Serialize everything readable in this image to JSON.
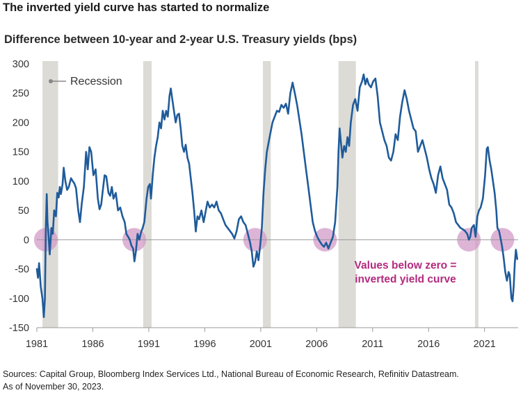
{
  "title": "The inverted yield curve has started to normalize",
  "subtitle": "Difference between 10-year and 2-year U.S. Treasury yields (bps)",
  "source_line1": "Sources: Capital Group, Bloomberg Index Services Ltd., National Bureau of Economic Research, Refinitiv Datastream.",
  "source_line2": "As of November 30, 2023.",
  "colors": {
    "line": "#1f5b9a",
    "recession": "#dcdbd6",
    "highlight": "#d39bc8",
    "annotation": "#b32a7e",
    "axis": "#999999"
  },
  "chart_data": {
    "type": "line",
    "xlim": [
      1981.0,
      2024.0
    ],
    "ylim": [
      -150,
      300
    ],
    "yticks": [
      -150,
      -100,
      -50,
      0,
      50,
      100,
      150,
      200,
      250,
      300
    ],
    "xticks": [
      1981,
      1986,
      1991,
      1996,
      2001,
      2006,
      2011,
      2016,
      2021
    ],
    "legend": {
      "label": "Recession",
      "position": "top-left"
    },
    "annotation": {
      "line1": "Values below zero =",
      "line2": "inverted yield curve"
    },
    "recessions": [
      [
        1981.5,
        1982.9
      ],
      [
        1990.5,
        1991.25
      ],
      [
        2001.2,
        2001.9
      ],
      [
        2007.95,
        2009.5
      ],
      [
        2020.15,
        2020.45
      ]
    ],
    "inversion_markers": [
      1981.8,
      1989.7,
      2000.5,
      2006.75,
      2019.6,
      2022.6
    ],
    "series": [
      {
        "points": [
          [
            1981.0,
            -50
          ],
          [
            1981.1,
            -65
          ],
          [
            1981.2,
            -40
          ],
          [
            1981.35,
            -80
          ],
          [
            1981.5,
            -100
          ],
          [
            1981.62,
            -132
          ],
          [
            1981.72,
            -100
          ],
          [
            1981.8,
            20
          ],
          [
            1981.88,
            78
          ],
          [
            1981.95,
            30
          ],
          [
            1982.05,
            5
          ],
          [
            1982.15,
            -25
          ],
          [
            1982.3,
            20
          ],
          [
            1982.42,
            10
          ],
          [
            1982.55,
            50
          ],
          [
            1982.7,
            40
          ],
          [
            1982.82,
            80
          ],
          [
            1982.95,
            72
          ],
          [
            1983.05,
            90
          ],
          [
            1983.15,
            78
          ],
          [
            1983.3,
            95
          ],
          [
            1983.4,
            123
          ],
          [
            1983.55,
            100
          ],
          [
            1983.7,
            85
          ],
          [
            1983.85,
            90
          ],
          [
            1984.05,
            105
          ],
          [
            1984.2,
            100
          ],
          [
            1984.35,
            96
          ],
          [
            1984.5,
            88
          ],
          [
            1984.7,
            50
          ],
          [
            1984.85,
            30
          ],
          [
            1985.0,
            60
          ],
          [
            1985.2,
            90
          ],
          [
            1985.4,
            150
          ],
          [
            1985.55,
            120
          ],
          [
            1985.7,
            158
          ],
          [
            1985.85,
            150
          ],
          [
            1986.05,
            110
          ],
          [
            1986.25,
            120
          ],
          [
            1986.45,
            70
          ],
          [
            1986.6,
            52
          ],
          [
            1986.75,
            60
          ],
          [
            1986.9,
            85
          ],
          [
            1987.05,
            110
          ],
          [
            1987.2,
            108
          ],
          [
            1987.4,
            80
          ],
          [
            1987.55,
            75
          ],
          [
            1987.7,
            90
          ],
          [
            1987.85,
            70
          ],
          [
            1988.05,
            80
          ],
          [
            1988.25,
            50
          ],
          [
            1988.45,
            55
          ],
          [
            1988.65,
            40
          ],
          [
            1988.85,
            30
          ],
          [
            1989.0,
            10
          ],
          [
            1989.15,
            5
          ],
          [
            1989.3,
            0
          ],
          [
            1989.45,
            -10
          ],
          [
            1989.6,
            -15
          ],
          [
            1989.72,
            -37
          ],
          [
            1989.85,
            -20
          ],
          [
            1990.0,
            10
          ],
          [
            1990.15,
            0
          ],
          [
            1990.3,
            12
          ],
          [
            1990.45,
            20
          ],
          [
            1990.6,
            30
          ],
          [
            1990.8,
            70
          ],
          [
            1990.95,
            90
          ],
          [
            1991.1,
            95
          ],
          [
            1991.2,
            70
          ],
          [
            1991.35,
            110
          ],
          [
            1991.5,
            140
          ],
          [
            1991.65,
            160
          ],
          [
            1991.8,
            175
          ],
          [
            1991.95,
            200
          ],
          [
            1992.1,
            190
          ],
          [
            1992.25,
            220
          ],
          [
            1992.4,
            205
          ],
          [
            1992.55,
            220
          ],
          [
            1992.7,
            210
          ],
          [
            1992.85,
            245
          ],
          [
            1992.97,
            258
          ],
          [
            1993.1,
            240
          ],
          [
            1993.25,
            220
          ],
          [
            1993.4,
            200
          ],
          [
            1993.55,
            213
          ],
          [
            1993.7,
            215
          ],
          [
            1993.85,
            190
          ],
          [
            1994.0,
            160
          ],
          [
            1994.15,
            150
          ],
          [
            1994.3,
            162
          ],
          [
            1994.45,
            140
          ],
          [
            1994.6,
            130
          ],
          [
            1994.75,
            105
          ],
          [
            1994.9,
            80
          ],
          [
            1995.05,
            50
          ],
          [
            1995.2,
            14
          ],
          [
            1995.35,
            40
          ],
          [
            1995.5,
            35
          ],
          [
            1995.7,
            50
          ],
          [
            1995.9,
            30
          ],
          [
            1996.05,
            45
          ],
          [
            1996.25,
            65
          ],
          [
            1996.45,
            55
          ],
          [
            1996.65,
            60
          ],
          [
            1996.85,
            55
          ],
          [
            1997.05,
            65
          ],
          [
            1997.25,
            50
          ],
          [
            1997.45,
            45
          ],
          [
            1997.65,
            35
          ],
          [
            1997.85,
            25
          ],
          [
            1998.05,
            20
          ],
          [
            1998.25,
            15
          ],
          [
            1998.45,
            10
          ],
          [
            1998.65,
            2
          ],
          [
            1998.85,
            15
          ],
          [
            1999.05,
            35
          ],
          [
            1999.25,
            40
          ],
          [
            1999.45,
            30
          ],
          [
            1999.65,
            25
          ],
          [
            1999.85,
            10
          ],
          [
            2000.05,
            -5
          ],
          [
            2000.2,
            -20
          ],
          [
            2000.35,
            -46
          ],
          [
            2000.5,
            -38
          ],
          [
            2000.65,
            -20
          ],
          [
            2000.8,
            -35
          ],
          [
            2000.95,
            -10
          ],
          [
            2001.1,
            20
          ],
          [
            2001.25,
            80
          ],
          [
            2001.4,
            120
          ],
          [
            2001.55,
            150
          ],
          [
            2001.7,
            165
          ],
          [
            2001.85,
            180
          ],
          [
            2002.05,
            200
          ],
          [
            2002.25,
            210
          ],
          [
            2002.45,
            220
          ],
          [
            2002.65,
            218
          ],
          [
            2002.85,
            230
          ],
          [
            2003.05,
            225
          ],
          [
            2003.25,
            232
          ],
          [
            2003.45,
            215
          ],
          [
            2003.65,
            250
          ],
          [
            2003.85,
            268
          ],
          [
            2004.05,
            250
          ],
          [
            2004.25,
            230
          ],
          [
            2004.45,
            205
          ],
          [
            2004.65,
            180
          ],
          [
            2004.85,
            150
          ],
          [
            2005.05,
            120
          ],
          [
            2005.25,
            90
          ],
          [
            2005.45,
            60
          ],
          [
            2005.65,
            30
          ],
          [
            2005.85,
            15
          ],
          [
            2006.05,
            5
          ],
          [
            2006.25,
            -2
          ],
          [
            2006.45,
            -8
          ],
          [
            2006.65,
            -12
          ],
          [
            2006.85,
            -5
          ],
          [
            2007.05,
            -15
          ],
          [
            2007.25,
            -5
          ],
          [
            2007.45,
            5
          ],
          [
            2007.65,
            30
          ],
          [
            2007.85,
            90
          ],
          [
            2007.95,
            150
          ],
          [
            2008.05,
            190
          ],
          [
            2008.15,
            170
          ],
          [
            2008.3,
            140
          ],
          [
            2008.45,
            160
          ],
          [
            2008.6,
            150
          ],
          [
            2008.75,
            175
          ],
          [
            2008.9,
            160
          ],
          [
            2009.05,
            200
          ],
          [
            2009.25,
            230
          ],
          [
            2009.45,
            240
          ],
          [
            2009.65,
            220
          ],
          [
            2009.85,
            260
          ],
          [
            2010.05,
            270
          ],
          [
            2010.2,
            282
          ],
          [
            2010.35,
            265
          ],
          [
            2010.5,
            275
          ],
          [
            2010.65,
            265
          ],
          [
            2010.85,
            260
          ],
          [
            2011.05,
            270
          ],
          [
            2011.25,
            275
          ],
          [
            2011.45,
            245
          ],
          [
            2011.65,
            200
          ],
          [
            2011.85,
            185
          ],
          [
            2012.05,
            170
          ],
          [
            2012.25,
            160
          ],
          [
            2012.45,
            140
          ],
          [
            2012.65,
            135
          ],
          [
            2012.85,
            150
          ],
          [
            2013.05,
            180
          ],
          [
            2013.25,
            170
          ],
          [
            2013.45,
            210
          ],
          [
            2013.65,
            235
          ],
          [
            2013.85,
            255
          ],
          [
            2014.05,
            240
          ],
          [
            2014.25,
            220
          ],
          [
            2014.45,
            205
          ],
          [
            2014.65,
            190
          ],
          [
            2014.85,
            185
          ],
          [
            2015.05,
            150
          ],
          [
            2015.25,
            160
          ],
          [
            2015.45,
            170
          ],
          [
            2015.65,
            155
          ],
          [
            2015.85,
            140
          ],
          [
            2016.05,
            120
          ],
          [
            2016.25,
            105
          ],
          [
            2016.45,
            95
          ],
          [
            2016.65,
            80
          ],
          [
            2016.85,
            110
          ],
          [
            2017.05,
            125
          ],
          [
            2017.25,
            105
          ],
          [
            2017.45,
            95
          ],
          [
            2017.65,
            85
          ],
          [
            2017.85,
            60
          ],
          [
            2018.05,
            55
          ],
          [
            2018.25,
            45
          ],
          [
            2018.45,
            30
          ],
          [
            2018.65,
            25
          ],
          [
            2018.85,
            20
          ],
          [
            2019.05,
            18
          ],
          [
            2019.25,
            15
          ],
          [
            2019.45,
            10
          ],
          [
            2019.6,
            0
          ],
          [
            2019.72,
            5
          ],
          [
            2019.85,
            20
          ],
          [
            2020.05,
            25
          ],
          [
            2020.2,
            5
          ],
          [
            2020.35,
            40
          ],
          [
            2020.5,
            50
          ],
          [
            2020.65,
            55
          ],
          [
            2020.85,
            70
          ],
          [
            2021.05,
            110
          ],
          [
            2021.2,
            155
          ],
          [
            2021.3,
            158
          ],
          [
            2021.45,
            135
          ],
          [
            2021.6,
            120
          ],
          [
            2021.75,
            100
          ],
          [
            2021.9,
            80
          ],
          [
            2022.05,
            50
          ],
          [
            2022.15,
            20
          ],
          [
            2022.3,
            15
          ],
          [
            2022.45,
            0
          ],
          [
            2022.55,
            -10
          ],
          [
            2022.7,
            -30
          ],
          [
            2022.85,
            -55
          ],
          [
            2023.0,
            -70
          ],
          [
            2023.15,
            -55
          ],
          [
            2023.25,
            -60
          ],
          [
            2023.4,
            -100
          ],
          [
            2023.5,
            -105
          ],
          [
            2023.6,
            -80
          ],
          [
            2023.7,
            -40
          ],
          [
            2023.8,
            -17
          ],
          [
            2023.92,
            -33
          ]
        ]
      }
    ]
  }
}
